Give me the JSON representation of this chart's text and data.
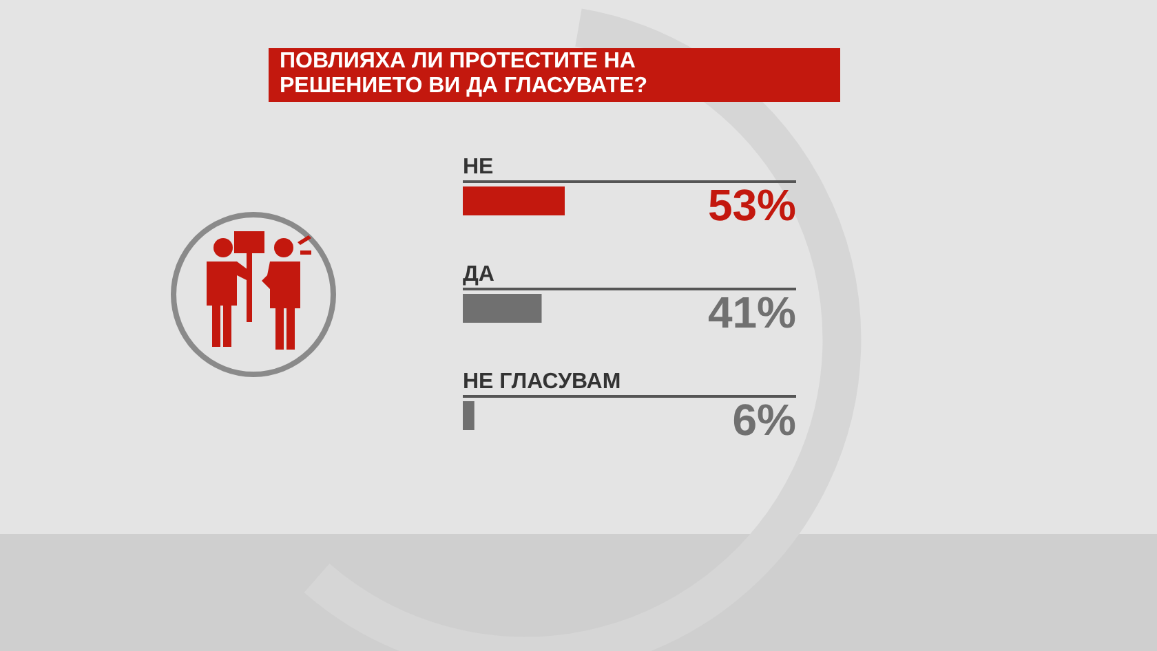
{
  "chart_data": {
    "type": "bar",
    "orientation": "horizontal",
    "title": "ПОВЛИЯХА ЛИ ПРОТЕСТИТЕ НА РЕШЕНИЕТО ВИ ДА ГЛАСУВАТЕ?",
    "categories": [
      "НЕ",
      "ДА",
      "НЕ ГЛАСУВАМ"
    ],
    "values": [
      53,
      41,
      6
    ],
    "colors": [
      "#c3180e",
      "#707070",
      "#707070"
    ],
    "value_labels": [
      "53%",
      "41%",
      "6%"
    ]
  }
}
